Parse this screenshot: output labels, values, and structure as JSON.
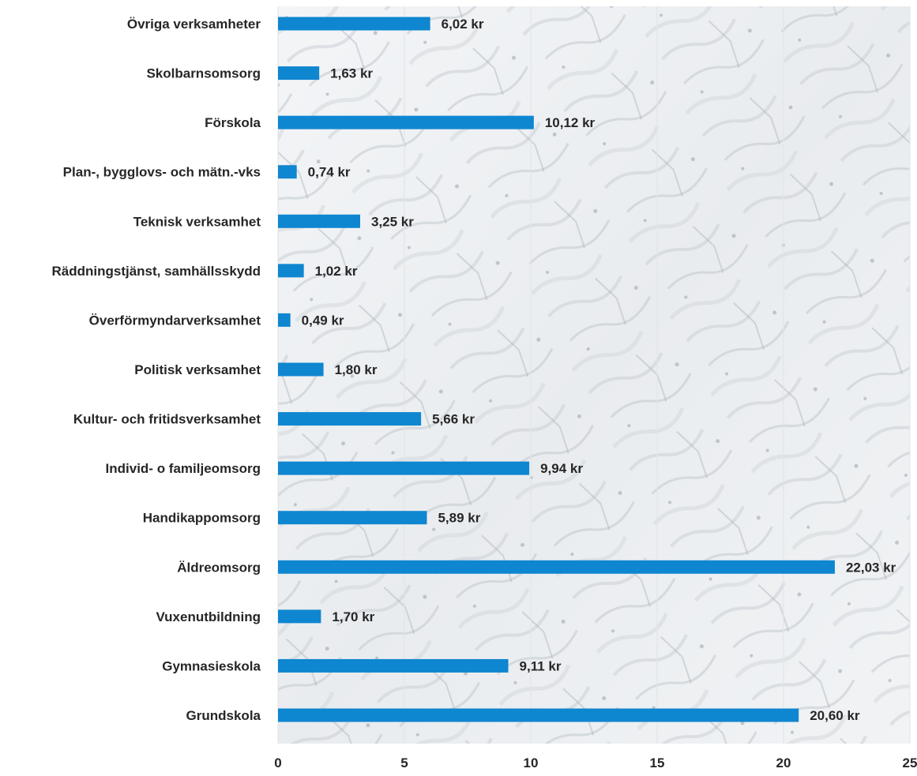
{
  "chart_data": {
    "type": "bar",
    "orientation": "horizontal",
    "categories": [
      "Övriga verksamheter",
      "Skolbarnsomsorg",
      "Förskola",
      "Plan-, bygglovs- och mätn.-vks",
      "Teknisk verksamhet",
      "Räddningstjänst, samhällsskydd",
      "Överförmyndarverksamhet",
      "Politisk verksamhet",
      "Kultur- och fritidsverksamhet",
      "Individ- o familjeomsorg",
      "Handikappomsorg",
      "Äldreomsorg",
      "Vuxenutbildning",
      "Gymnasieskola",
      "Grundskola"
    ],
    "values": [
      6.02,
      1.63,
      10.12,
      0.74,
      3.25,
      1.02,
      0.49,
      1.8,
      5.66,
      9.94,
      5.89,
      22.03,
      1.7,
      9.11,
      20.6
    ],
    "value_labels": [
      "6,02 kr",
      "1,63 kr",
      "10,12 kr",
      "0,74 kr",
      "3,25 kr",
      "1,02 kr",
      "0,49 kr",
      "1,80 kr",
      "5,66 kr",
      "9,94 kr",
      "5,89 kr",
      "22,03 kr",
      "1,70 kr",
      "9,11 kr",
      "20,60 kr"
    ],
    "xlim": [
      0,
      25
    ],
    "xticks": [
      0,
      5,
      10,
      15,
      20,
      25
    ],
    "xtick_labels": [
      "0",
      "5",
      "10",
      "15",
      "20",
      "25"
    ],
    "title": "",
    "xlabel": "",
    "ylabel": "",
    "grid": "vertical",
    "legend": "none",
    "bar_color": "#0f86d0",
    "background": "textured light grey"
  }
}
